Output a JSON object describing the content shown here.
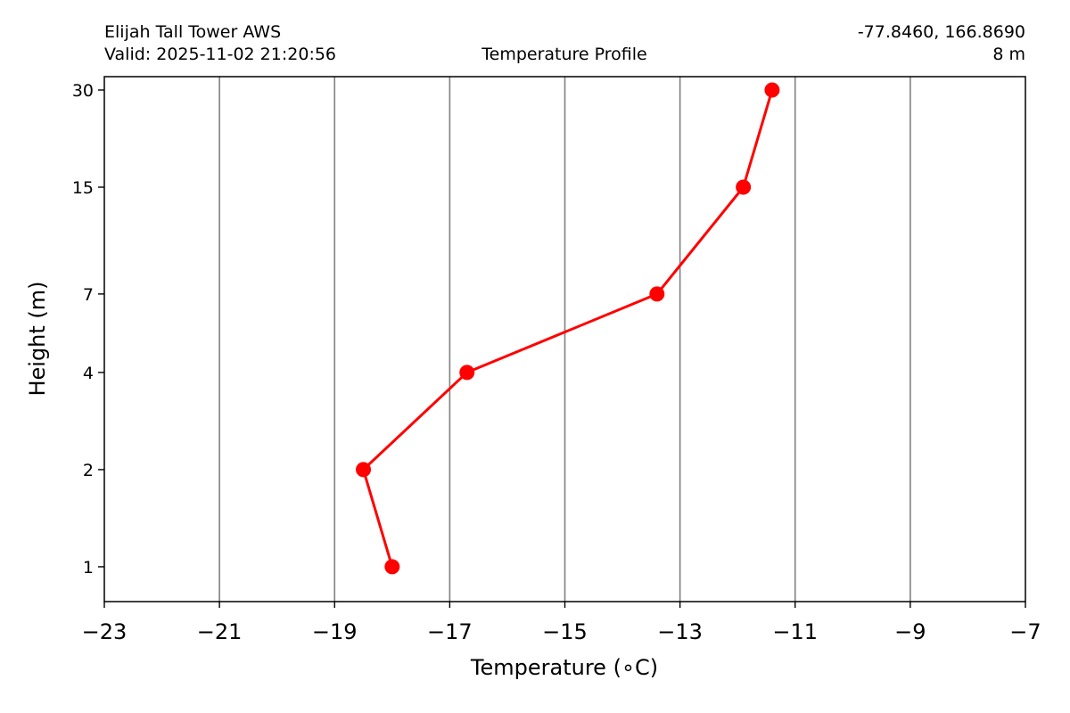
{
  "header": {
    "station": "Elijah Tall Tower AWS",
    "valid": "Valid: 2025-11-02 21:20:56",
    "title": "Temperature Profile",
    "coords": "-77.8460, 166.8690",
    "elevation": "8 m"
  },
  "chart_data": {
    "type": "line",
    "title": "Temperature Profile",
    "xlabel": "Temperature (∘C)",
    "ylabel": "Height (m)",
    "xlim": [
      -23,
      -7
    ],
    "x_ticks": [
      -23,
      -21,
      -19,
      -17,
      -15,
      -13,
      -11,
      -9,
      -7
    ],
    "x_tick_labels": [
      "−23",
      "−21",
      "−19",
      "−17",
      "−15",
      "−13",
      "−11",
      "−9",
      "−7"
    ],
    "y_scale": "log",
    "ylim": [
      0.78,
      33
    ],
    "y_ticks": [
      1,
      2,
      4,
      7,
      15,
      30
    ],
    "y_tick_labels": [
      "1",
      "2",
      "4",
      "7",
      "15",
      "30"
    ],
    "grid": "vertical",
    "series": [
      {
        "color": "#ff0000",
        "marker": "circle",
        "points": [
          {
            "temperature": -18.0,
            "height": 1
          },
          {
            "temperature": -18.5,
            "height": 2
          },
          {
            "temperature": -16.7,
            "height": 4
          },
          {
            "temperature": -13.4,
            "height": 7
          },
          {
            "temperature": -11.9,
            "height": 15
          },
          {
            "temperature": -11.4,
            "height": 30
          }
        ]
      }
    ]
  }
}
